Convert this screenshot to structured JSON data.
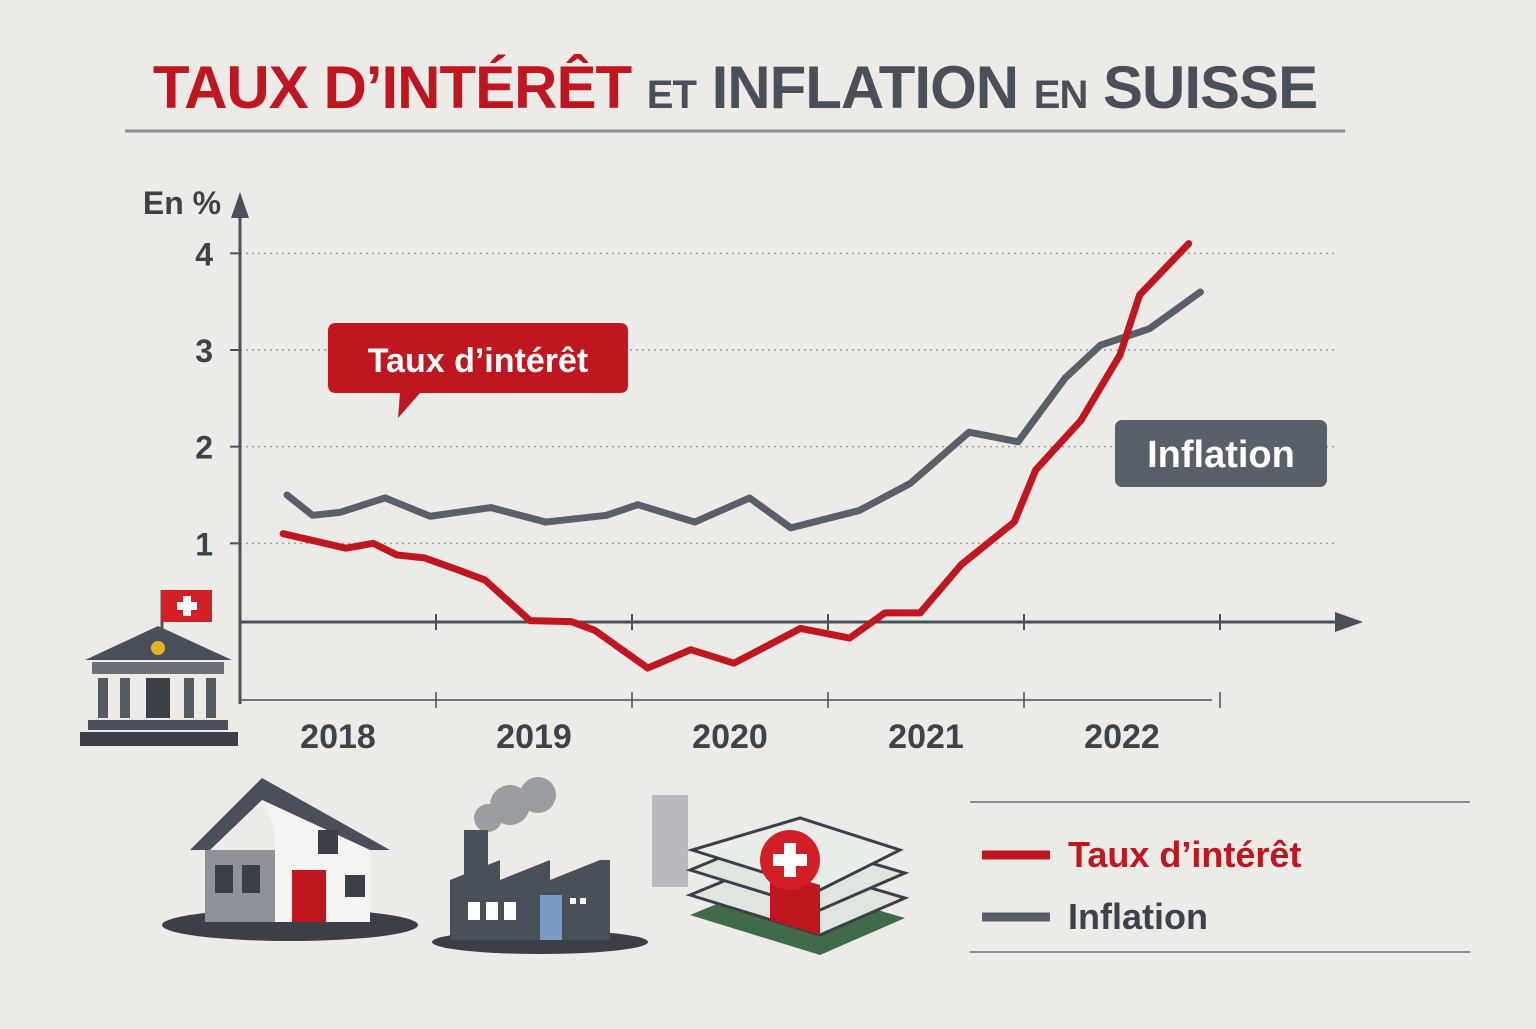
{
  "chart_data": {
    "type": "line",
    "title_parts": [
      "TAUX D’INTÉRÊT",
      "ET",
      "INFLATION",
      "EN",
      "SUISSE"
    ],
    "y_label": "En %",
    "xlim": [
      2018,
      2023
    ],
    "xticks": [
      {
        "value": 2018.5,
        "label": "2018"
      },
      {
        "value": 2019.5,
        "label": "2019"
      },
      {
        "value": 2020.5,
        "label": "2020"
      },
      {
        "value": 2021.5,
        "label": "2021"
      },
      {
        "value": 2022.5,
        "label": "2022"
      }
    ],
    "ylim": [
      -0.6,
      4.5
    ],
    "yticks": [
      1,
      2,
      3,
      4
    ],
    "grid": true,
    "series": [
      {
        "name": "Taux d’intérêt",
        "color": "#c0161f",
        "annotation": "Taux d’intérêt",
        "x": [
          2018.22,
          2018.54,
          2018.68,
          2018.8,
          2018.94,
          2019.12,
          2019.25,
          2019.48,
          2019.69,
          2019.81,
          2020.08,
          2020.3,
          2020.52,
          2020.86,
          2021.11,
          2021.29,
          2021.47,
          2021.68,
          2021.95,
          2022.06,
          2022.29,
          2022.49,
          2022.59,
          2022.84
        ],
        "values": [
          1.1,
          0.95,
          1.0,
          0.88,
          0.85,
          0.72,
          0.62,
          0.2,
          0.19,
          0.1,
          -0.29,
          -0.1,
          -0.24,
          0.12,
          0.02,
          0.28,
          0.28,
          0.78,
          1.22,
          1.76,
          2.27,
          2.95,
          3.57,
          4.1
        ]
      },
      {
        "name": "Inflation",
        "color": "#5a6069",
        "annotation": "Inflation",
        "x": [
          2018.24,
          2018.37,
          2018.51,
          2018.74,
          2018.97,
          2019.28,
          2019.56,
          2019.87,
          2020.03,
          2020.32,
          2020.6,
          2020.81,
          2021.16,
          2021.42,
          2021.72,
          2021.97,
          2022.21,
          2022.39,
          2022.64,
          2022.9
        ],
        "values": [
          1.5,
          1.29,
          1.32,
          1.47,
          1.28,
          1.37,
          1.22,
          1.29,
          1.4,
          1.22,
          1.47,
          1.16,
          1.34,
          1.62,
          2.15,
          2.05,
          2.71,
          3.05,
          3.22,
          3.6
        ]
      }
    ]
  }
}
